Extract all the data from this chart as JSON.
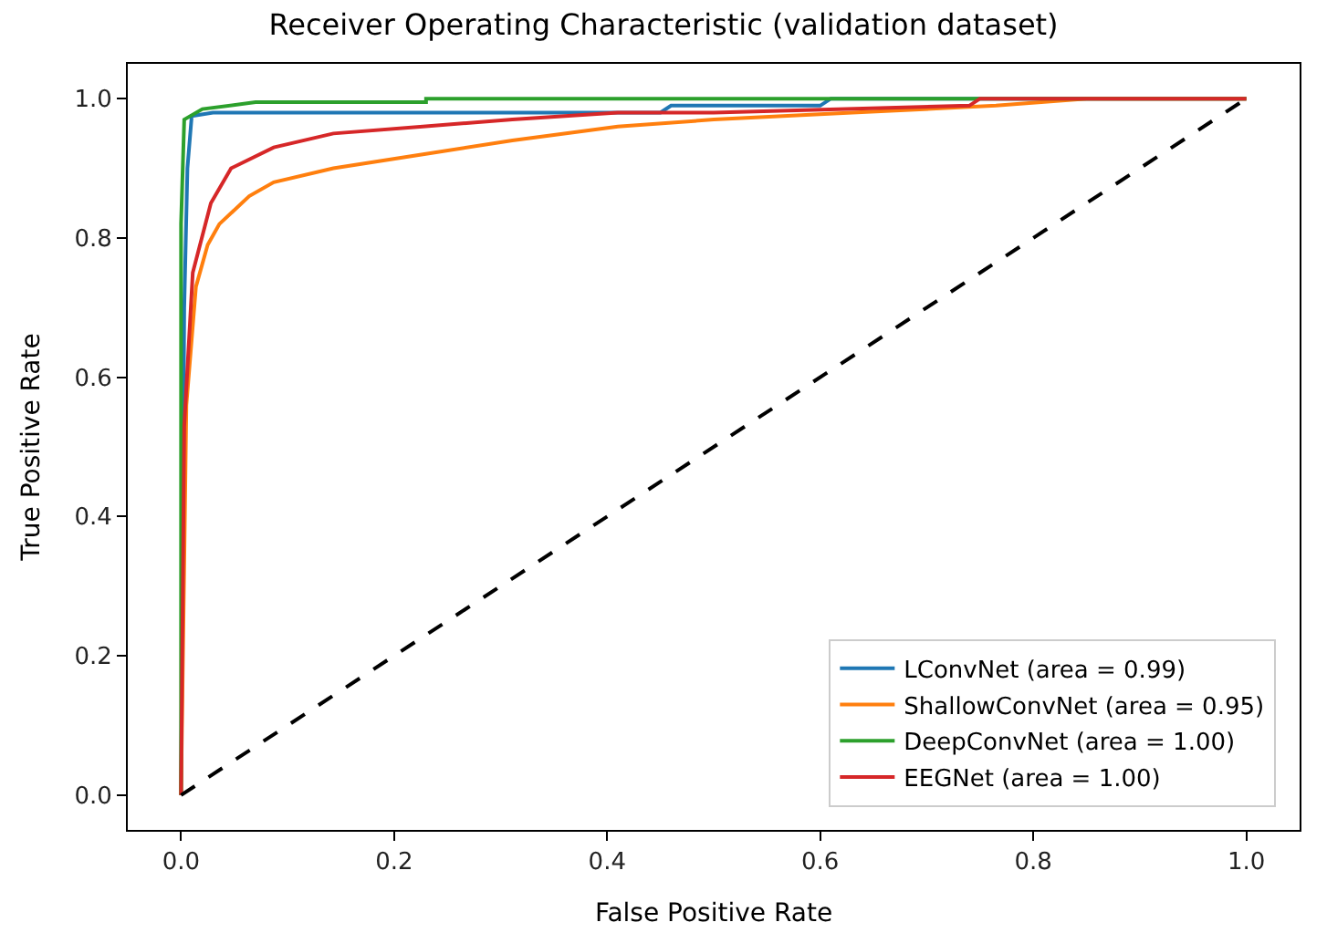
{
  "chart_data": {
    "type": "line",
    "title": "Receiver Operating Characteristic (validation dataset)",
    "xlabel": "False Positive Rate",
    "ylabel": "True Positive Rate",
    "xlim": [
      -0.05,
      1.05
    ],
    "ylim": [
      -0.05,
      1.05
    ],
    "xticks": [
      {
        "value": 0,
        "label": "0.0"
      },
      {
        "value": 0.2,
        "label": "0.2"
      },
      {
        "value": 0.4,
        "label": "0.4"
      },
      {
        "value": 0.6,
        "label": "0.6"
      },
      {
        "value": 0.8,
        "label": "0.8"
      },
      {
        "value": 1,
        "label": "1.0"
      }
    ],
    "yticks": [
      {
        "value": 0,
        "label": "0.0"
      },
      {
        "value": 0.2,
        "label": "0.2"
      },
      {
        "value": 0.4,
        "label": "0.4"
      },
      {
        "value": 0.6,
        "label": "0.6"
      },
      {
        "value": 0.8,
        "label": "0.8"
      },
      {
        "value": 1,
        "label": "1.0"
      }
    ],
    "legend": "bottom right",
    "series": [
      {
        "name": "LConvNet (area = 0.99)",
        "color": "#1f77b4",
        "x": [
          0,
          0.003,
          0.006,
          0.01,
          0.03,
          0.45,
          0.46,
          0.6,
          0.61,
          1
        ],
        "values": [
          0,
          0.7,
          0.9,
          0.975,
          0.98,
          0.98,
          0.99,
          0.99,
          1,
          1
        ]
      },
      {
        "name": "ShallowConvNet (area = 0.95)",
        "color": "#ff7f0e",
        "x": [
          0,
          0.005,
          0.014,
          0.025,
          0.036,
          0.064,
          0.087,
          0.143,
          0.227,
          0.311,
          0.41,
          0.5,
          0.63,
          0.765,
          0.85,
          1
        ],
        "values": [
          0,
          0.56,
          0.73,
          0.79,
          0.82,
          0.86,
          0.88,
          0.9,
          0.92,
          0.94,
          0.96,
          0.97,
          0.98,
          0.99,
          1,
          1
        ]
      },
      {
        "name": "DeepConvNet (area = 1.00)",
        "color": "#2ca02c",
        "x": [
          0,
          0,
          0.003,
          0.02,
          0.07,
          0.23,
          0.23,
          1
        ],
        "values": [
          0,
          0.82,
          0.97,
          0.985,
          0.995,
          0.995,
          1,
          1
        ]
      },
      {
        "name": "EEGNet (area = 1.00)",
        "color": "#d62728",
        "x": [
          0,
          0.003,
          0.011,
          0.028,
          0.047,
          0.087,
          0.143,
          0.227,
          0.311,
          0.41,
          0.5,
          0.74,
          0.75,
          1
        ],
        "values": [
          0,
          0.53,
          0.75,
          0.85,
          0.9,
          0.93,
          0.95,
          0.96,
          0.97,
          0.98,
          0.98,
          0.99,
          1,
          1
        ]
      },
      {
        "color": "#000000",
        "line_style": "dashed",
        "x": [
          0,
          1
        ],
        "values": [
          0,
          1
        ]
      }
    ]
  }
}
